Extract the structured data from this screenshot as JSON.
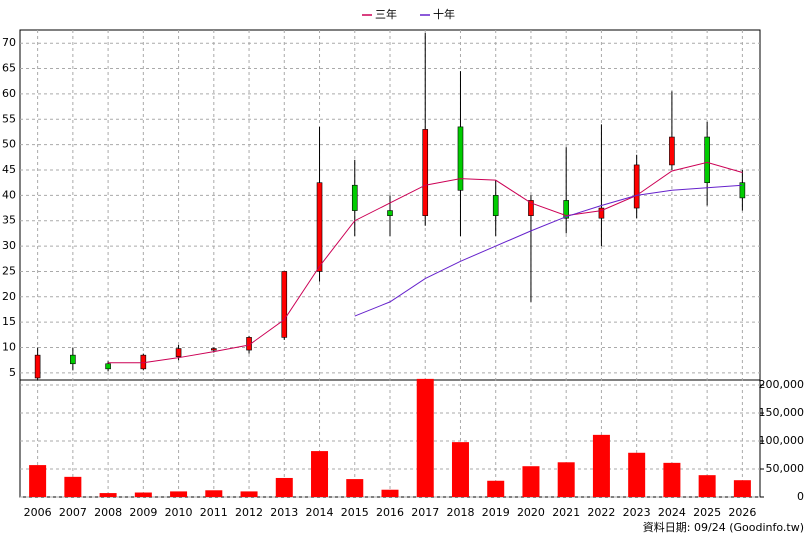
{
  "chart_data": {
    "type": "candlestick",
    "legend": "top",
    "categories": [
      "2006",
      "2007",
      "2008",
      "2009",
      "2010",
      "2011",
      "2012",
      "2013",
      "2014",
      "2015",
      "2016",
      "2017",
      "2018",
      "2019",
      "2020",
      "2021",
      "2022",
      "2023",
      "2024",
      "2025",
      "2026"
    ],
    "open": [
      4,
      8.5,
      6.8,
      5.8,
      8.2,
      9.5,
      9.5,
      12,
      25,
      42,
      37,
      36,
      53.5,
      40,
      36,
      39,
      35.5,
      37.5,
      46,
      51.5,
      42.5
    ],
    "high": [
      10,
      10,
      7.3,
      8.8,
      10.5,
      10,
      12.3,
      25,
      53.5,
      47,
      40,
      72,
      64.5,
      43,
      40,
      49.5,
      54,
      48,
      60.5,
      54.5,
      45
    ],
    "low": [
      3.5,
      5.5,
      5.3,
      5.5,
      7.5,
      9,
      8.8,
      11.5,
      23,
      32,
      32,
      34,
      32,
      32,
      19,
      32.5,
      30,
      35.5,
      45,
      38,
      37
    ],
    "close": [
      8.5,
      6.8,
      5.8,
      8.5,
      9.8,
      9.8,
      12,
      25,
      42.5,
      37,
      36,
      53,
      41,
      36,
      39,
      35.5,
      37.5,
      46,
      51.5,
      42.5,
      39.5
    ],
    "up_color": "#ff0000",
    "down_color": "#00cc00",
    "series": [
      {
        "name": "三年",
        "color": "#cc0055",
        "values": [
          null,
          null,
          7,
          7,
          8,
          9.2,
          10.5,
          15.5,
          26,
          35,
          38.5,
          42,
          43.3,
          43,
          38.5,
          36,
          37,
          40,
          44.8,
          46.5,
          44.5
        ]
      },
      {
        "name": "十年",
        "color": "#6622cc",
        "values": [
          null,
          null,
          null,
          null,
          null,
          null,
          null,
          null,
          null,
          16.2,
          19,
          23.6,
          27,
          30,
          33,
          35.8,
          38,
          40,
          41,
          41.5,
          42
        ]
      }
    ],
    "volume": {
      "color": "#ff0000",
      "axis": "y2",
      "values": [
        57000,
        36000,
        7000,
        8000,
        10000,
        12000,
        10000,
        34000,
        82000,
        32000,
        13000,
        211000,
        98000,
        29000,
        55000,
        62000,
        111000,
        79000,
        61000,
        39000,
        30000
      ]
    },
    "ylim": [
      3.6,
      72.6
    ],
    "yticks": [
      5,
      10,
      15,
      20,
      25,
      30,
      35,
      40,
      45,
      50,
      55,
      60,
      65,
      70
    ],
    "y2lim": [
      0,
      209000
    ],
    "y2ticks": [
      0,
      {
        "value": 50000,
        "label": "50,000"
      },
      {
        "value": 100000,
        "label": "100,000"
      },
      {
        "value": 150000,
        "label": "150,000"
      },
      {
        "value": 200000,
        "label": "200,000"
      }
    ],
    "grid": true,
    "source": "資料日期: 09/24 (Goodinfo.tw)"
  }
}
